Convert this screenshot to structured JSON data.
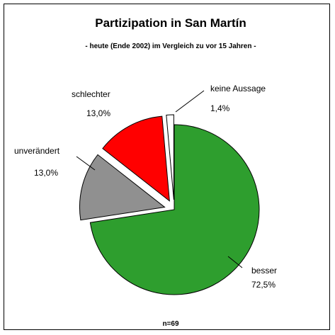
{
  "chart_data": {
    "type": "pie",
    "title": "Partizipation in San Martín",
    "subtitle": "- heute (Ende 2002) im Vergleich zu vor 15 Jahren -",
    "note": "n=69",
    "slices": [
      {
        "label": "besser",
        "value": 72.5,
        "value_label": "72,5%",
        "color": "#2e9e2e",
        "exploded": false
      },
      {
        "label": "unverändert",
        "value": 13.0,
        "value_label": "13,0%",
        "color": "#909090",
        "exploded": true
      },
      {
        "label": "schlechter",
        "value": 13.0,
        "value_label": "13,0%",
        "color": "#ff0000",
        "exploded": true
      },
      {
        "label": "keine Aussage",
        "value": 1.4,
        "value_label": "1,4%",
        "color": "#ffffff",
        "exploded": true
      }
    ]
  }
}
